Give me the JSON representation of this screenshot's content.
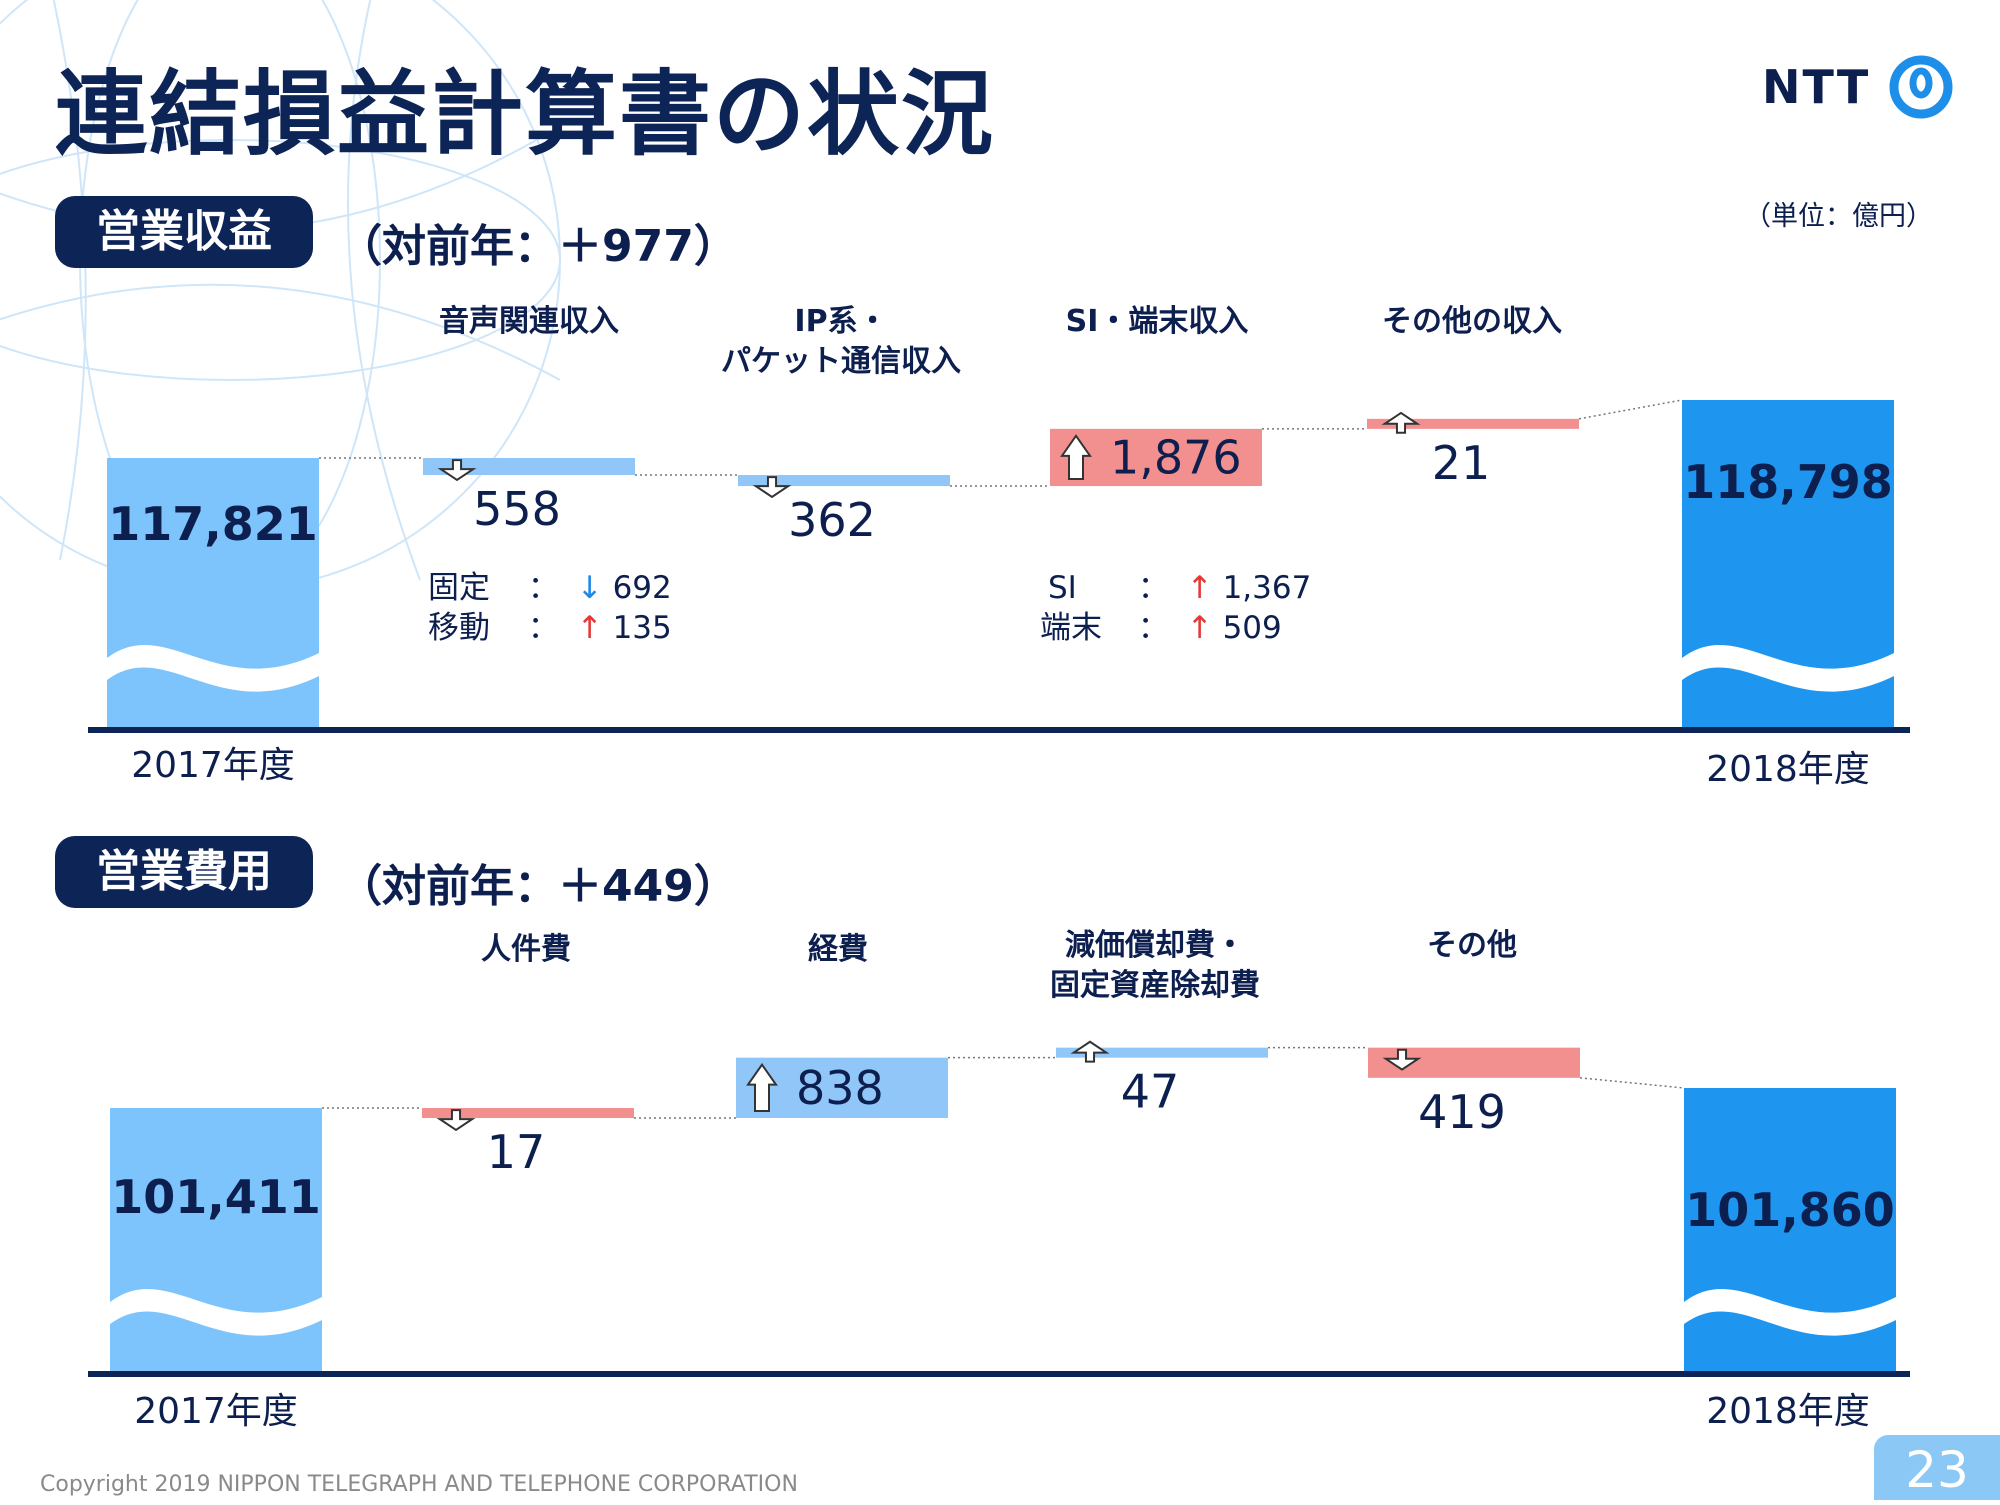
{
  "title": "連結損益計算書の状況",
  "logo": {
    "text": "NTT",
    "icon": "ntt-ring-icon"
  },
  "unit": "（単位：億円）",
  "colors": {
    "navy": "#0d2456",
    "base_light": "#7cc4fb",
    "base_dark": "#1e96f0",
    "decrease": "#90c6f8",
    "increase": "#f28f8f"
  },
  "revenue": {
    "badge": "営業収益",
    "yoy": "（対前年：＋977）",
    "start_label": "2017年度",
    "end_label": "2018年度",
    "categories": [
      "音声関連収入",
      "IP系・\nパケット通信収入",
      "SI・端末収入",
      "その他の収入"
    ],
    "details": {
      "voice": [
        {
          "label": "固定",
          "sep": "：",
          "arrow": "↓",
          "value": "692"
        },
        {
          "label": "移動",
          "sep": "：",
          "arrow": "↑",
          "value": "135"
        }
      ],
      "si": [
        {
          "label": "SI",
          "sep": "：",
          "arrow": "↑",
          "value": "1,367"
        },
        {
          "label": "端末",
          "sep": "：",
          "arrow": "↑",
          "value": "509"
        }
      ]
    }
  },
  "expenses": {
    "badge": "営業費用",
    "yoy": "（対前年：＋449）",
    "start_label": "2017年度",
    "end_label": "2018年度",
    "categories": [
      "人件費",
      "経費",
      "減価償却費・\n固定資産除却費",
      "その他"
    ]
  },
  "chart_data": [
    {
      "type": "waterfall",
      "title": "営業収益",
      "start": {
        "label": "2017年度",
        "value": 117821,
        "value_text": "117,821"
      },
      "end": {
        "label": "2018年度",
        "value": 118798,
        "value_text": "118,798"
      },
      "steps": [
        {
          "category": "音声関連収入",
          "delta": -558,
          "value_text": "558"
        },
        {
          "category": "IP系・パケット通信収入",
          "delta": -362,
          "value_text": "362"
        },
        {
          "category": "SI・端末収入",
          "delta": 1876,
          "value_text": "1,876"
        },
        {
          "category": "その他の収入",
          "delta": 21,
          "value_text": "21"
        }
      ]
    },
    {
      "type": "waterfall",
      "title": "営業費用",
      "start": {
        "label": "2017年度",
        "value": 101411,
        "value_text": "101,411"
      },
      "end": {
        "label": "2018年度",
        "value": 101860,
        "value_text": "101,860"
      },
      "steps": [
        {
          "category": "人件費",
          "delta": -17,
          "value_text": "17"
        },
        {
          "category": "経費",
          "delta": 838,
          "value_text": "838"
        },
        {
          "category": "減価償却費・固定資産除却費",
          "delta": 47,
          "value_text": "47"
        },
        {
          "category": "その他",
          "delta": -419,
          "value_text": "419"
        }
      ]
    }
  ],
  "footer": {
    "copyright": "Copyright 2019 NIPPON TELEGRAPH AND TELEPHONE CORPORATION",
    "page_number": "23"
  }
}
